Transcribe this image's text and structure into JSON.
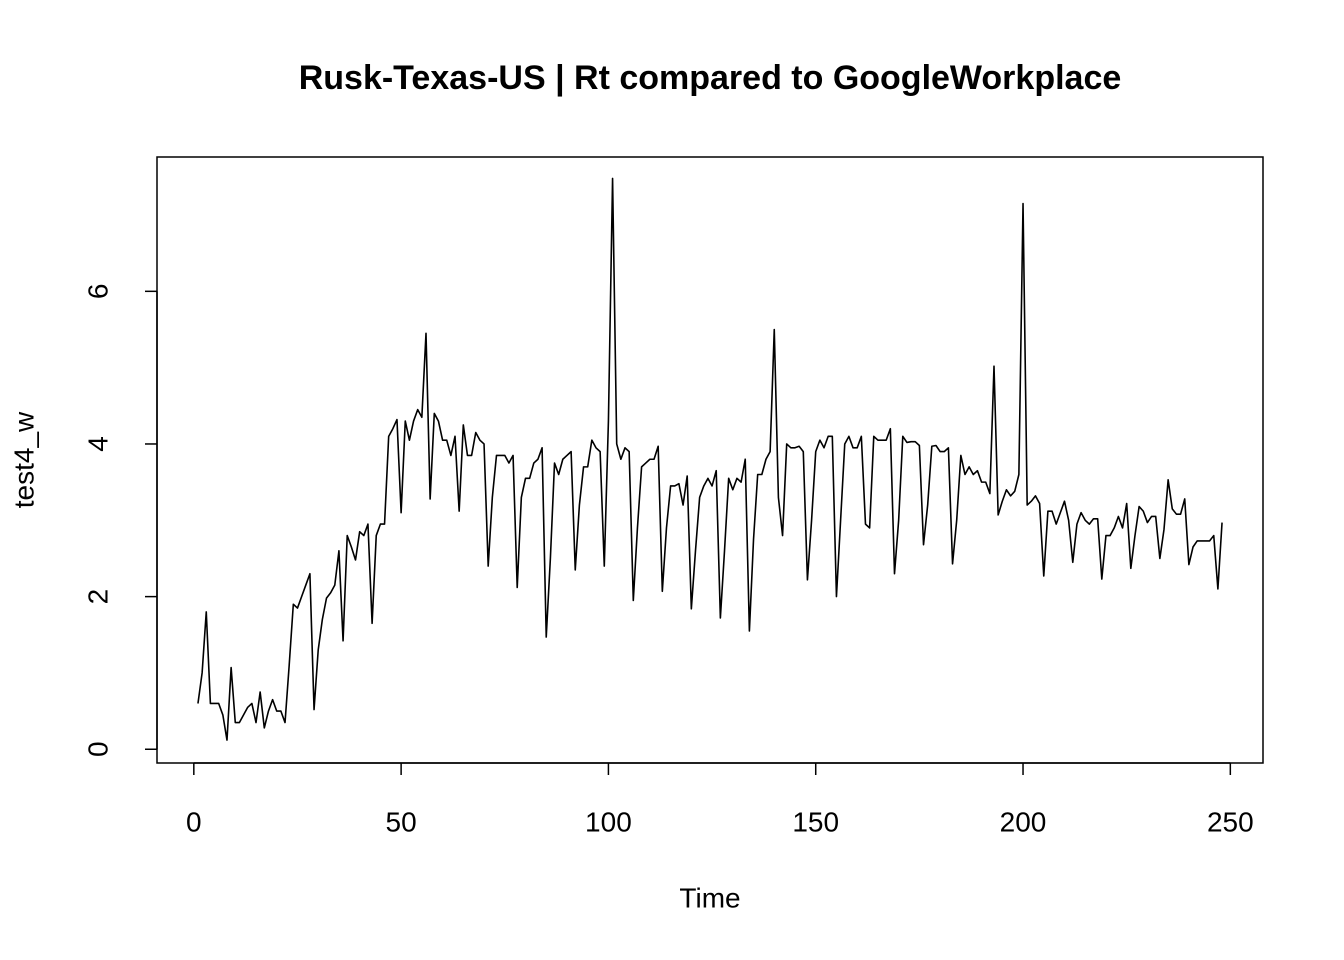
{
  "chart_data": {
    "type": "line",
    "title": "Rusk-Texas-US | Rt compared to GoogleWorkplace",
    "x_label": "Time",
    "y_label": "test4_w",
    "color": "#000000",
    "x": [
      1,
      2,
      3,
      4,
      5,
      6,
      7,
      8,
      9,
      10,
      11,
      12,
      13,
      14,
      15,
      16,
      17,
      18,
      19,
      20,
      21,
      22,
      23,
      24,
      25,
      26,
      27,
      28,
      29,
      30,
      31,
      32,
      33,
      34,
      35,
      36,
      37,
      38,
      39,
      40,
      41,
      42,
      43,
      44,
      45,
      46,
      47,
      48,
      49,
      50,
      51,
      52,
      53,
      54,
      55,
      56,
      57,
      58,
      59,
      60,
      61,
      62,
      63,
      64,
      65,
      66,
      67,
      68,
      69,
      70,
      71,
      72,
      73,
      74,
      75,
      76,
      77,
      78,
      79,
      80,
      81,
      82,
      83,
      84,
      85,
      86,
      87,
      88,
      89,
      90,
      91,
      92,
      93,
      94,
      95,
      96,
      97,
      98,
      99,
      100,
      101,
      102,
      103,
      104,
      105,
      106,
      107,
      108,
      109,
      110,
      111,
      112,
      113,
      114,
      115,
      116,
      117,
      118,
      119,
      120,
      121,
      122,
      123,
      124,
      125,
      126,
      127,
      128,
      129,
      130,
      131,
      132,
      133,
      134,
      135,
      136,
      137,
      138,
      139,
      140,
      141,
      142,
      143,
      144,
      145,
      146,
      147,
      148,
      149,
      150,
      151,
      152,
      153,
      154,
      155,
      156,
      157,
      158,
      159,
      160,
      161,
      162,
      163,
      164,
      165,
      166,
      167,
      168,
      169,
      170,
      171,
      172,
      173,
      174,
      175,
      176,
      177,
      178,
      179,
      180,
      181,
      182,
      183,
      184,
      185,
      186,
      187,
      188,
      189,
      190,
      191,
      192,
      193,
      194,
      195,
      196,
      197,
      198,
      199,
      200,
      201,
      202,
      203,
      204,
      205,
      206,
      207,
      208,
      209,
      210,
      211,
      212,
      213,
      214,
      215,
      216,
      217,
      218,
      219,
      220,
      221,
      222,
      223,
      224,
      225,
      226,
      227,
      228,
      229,
      230,
      231,
      232,
      233,
      234,
      235,
      236,
      237,
      238,
      239,
      240,
      241,
      242,
      243,
      244,
      245,
      246,
      247,
      248
    ],
    "values": [
      0.6,
      1.0,
      1.8,
      0.6,
      0.6,
      0.6,
      0.45,
      0.12,
      1.07,
      0.35,
      0.35,
      0.45,
      0.55,
      0.6,
      0.35,
      0.75,
      0.28,
      0.5,
      0.65,
      0.5,
      0.5,
      0.35,
      1.1,
      1.9,
      1.85,
      2.0,
      2.15,
      2.3,
      0.52,
      1.3,
      1.7,
      1.98,
      2.05,
      2.15,
      2.6,
      1.42,
      2.8,
      2.65,
      2.48,
      2.85,
      2.8,
      2.95,
      1.65,
      2.8,
      2.95,
      2.95,
      4.1,
      4.2,
      4.32,
      3.1,
      4.3,
      4.05,
      4.3,
      4.45,
      4.35,
      5.45,
      3.28,
      4.4,
      4.3,
      4.05,
      4.05,
      3.85,
      4.1,
      3.12,
      4.25,
      3.85,
      3.85,
      4.15,
      4.05,
      4.0,
      2.4,
      3.3,
      3.85,
      3.85,
      3.85,
      3.75,
      3.85,
      2.12,
      3.3,
      3.55,
      3.55,
      3.75,
      3.8,
      3.95,
      1.47,
      2.5,
      3.75,
      3.6,
      3.8,
      3.85,
      3.9,
      2.35,
      3.2,
      3.7,
      3.7,
      4.05,
      3.95,
      3.9,
      2.4,
      4.3,
      7.48,
      4.0,
      3.8,
      3.95,
      3.9,
      1.95,
      2.9,
      3.7,
      3.75,
      3.8,
      3.8,
      3.97,
      2.07,
      2.9,
      3.45,
      3.45,
      3.48,
      3.2,
      3.58,
      1.84,
      2.6,
      3.3,
      3.45,
      3.55,
      3.45,
      3.65,
      1.72,
      2.6,
      3.55,
      3.4,
      3.55,
      3.5,
      3.8,
      1.55,
      2.75,
      3.6,
      3.6,
      3.8,
      3.9,
      5.5,
      3.3,
      2.8,
      4.0,
      3.95,
      3.95,
      3.97,
      3.9,
      2.22,
      3.0,
      3.9,
      4.05,
      3.95,
      4.1,
      4.1,
      2.0,
      3.0,
      4.0,
      4.1,
      3.95,
      3.95,
      4.1,
      2.95,
      2.9,
      4.1,
      4.05,
      4.05,
      4.05,
      4.2,
      2.3,
      3.0,
      4.1,
      4.02,
      4.03,
      4.03,
      3.98,
      2.68,
      3.2,
      3.97,
      3.98,
      3.9,
      3.9,
      3.95,
      2.43,
      3.0,
      3.85,
      3.6,
      3.7,
      3.6,
      3.65,
      3.5,
      3.5,
      3.35,
      5.02,
      3.07,
      3.25,
      3.4,
      3.32,
      3.38,
      3.6,
      7.15,
      3.2,
      3.25,
      3.32,
      3.22,
      2.27,
      3.12,
      3.12,
      2.95,
      3.1,
      3.25,
      3.0,
      2.45,
      2.95,
      3.1,
      3.0,
      2.95,
      3.02,
      3.02,
      2.23,
      2.8,
      2.8,
      2.9,
      3.05,
      2.9,
      3.22,
      2.37,
      2.8,
      3.18,
      3.12,
      2.97,
      3.05,
      3.05,
      2.5,
      2.88,
      3.53,
      3.15,
      3.08,
      3.08,
      3.28,
      2.42,
      2.65,
      2.73,
      2.73,
      2.73,
      2.73,
      2.8,
      2.1,
      2.97
    ],
    "xlim": [
      -8.88,
      257.88
    ],
    "ylim": [
      -0.18,
      7.76
    ],
    "xticks": [
      0,
      50,
      100,
      150,
      200,
      250
    ],
    "yticks": [
      0,
      2,
      4,
      6
    ]
  }
}
